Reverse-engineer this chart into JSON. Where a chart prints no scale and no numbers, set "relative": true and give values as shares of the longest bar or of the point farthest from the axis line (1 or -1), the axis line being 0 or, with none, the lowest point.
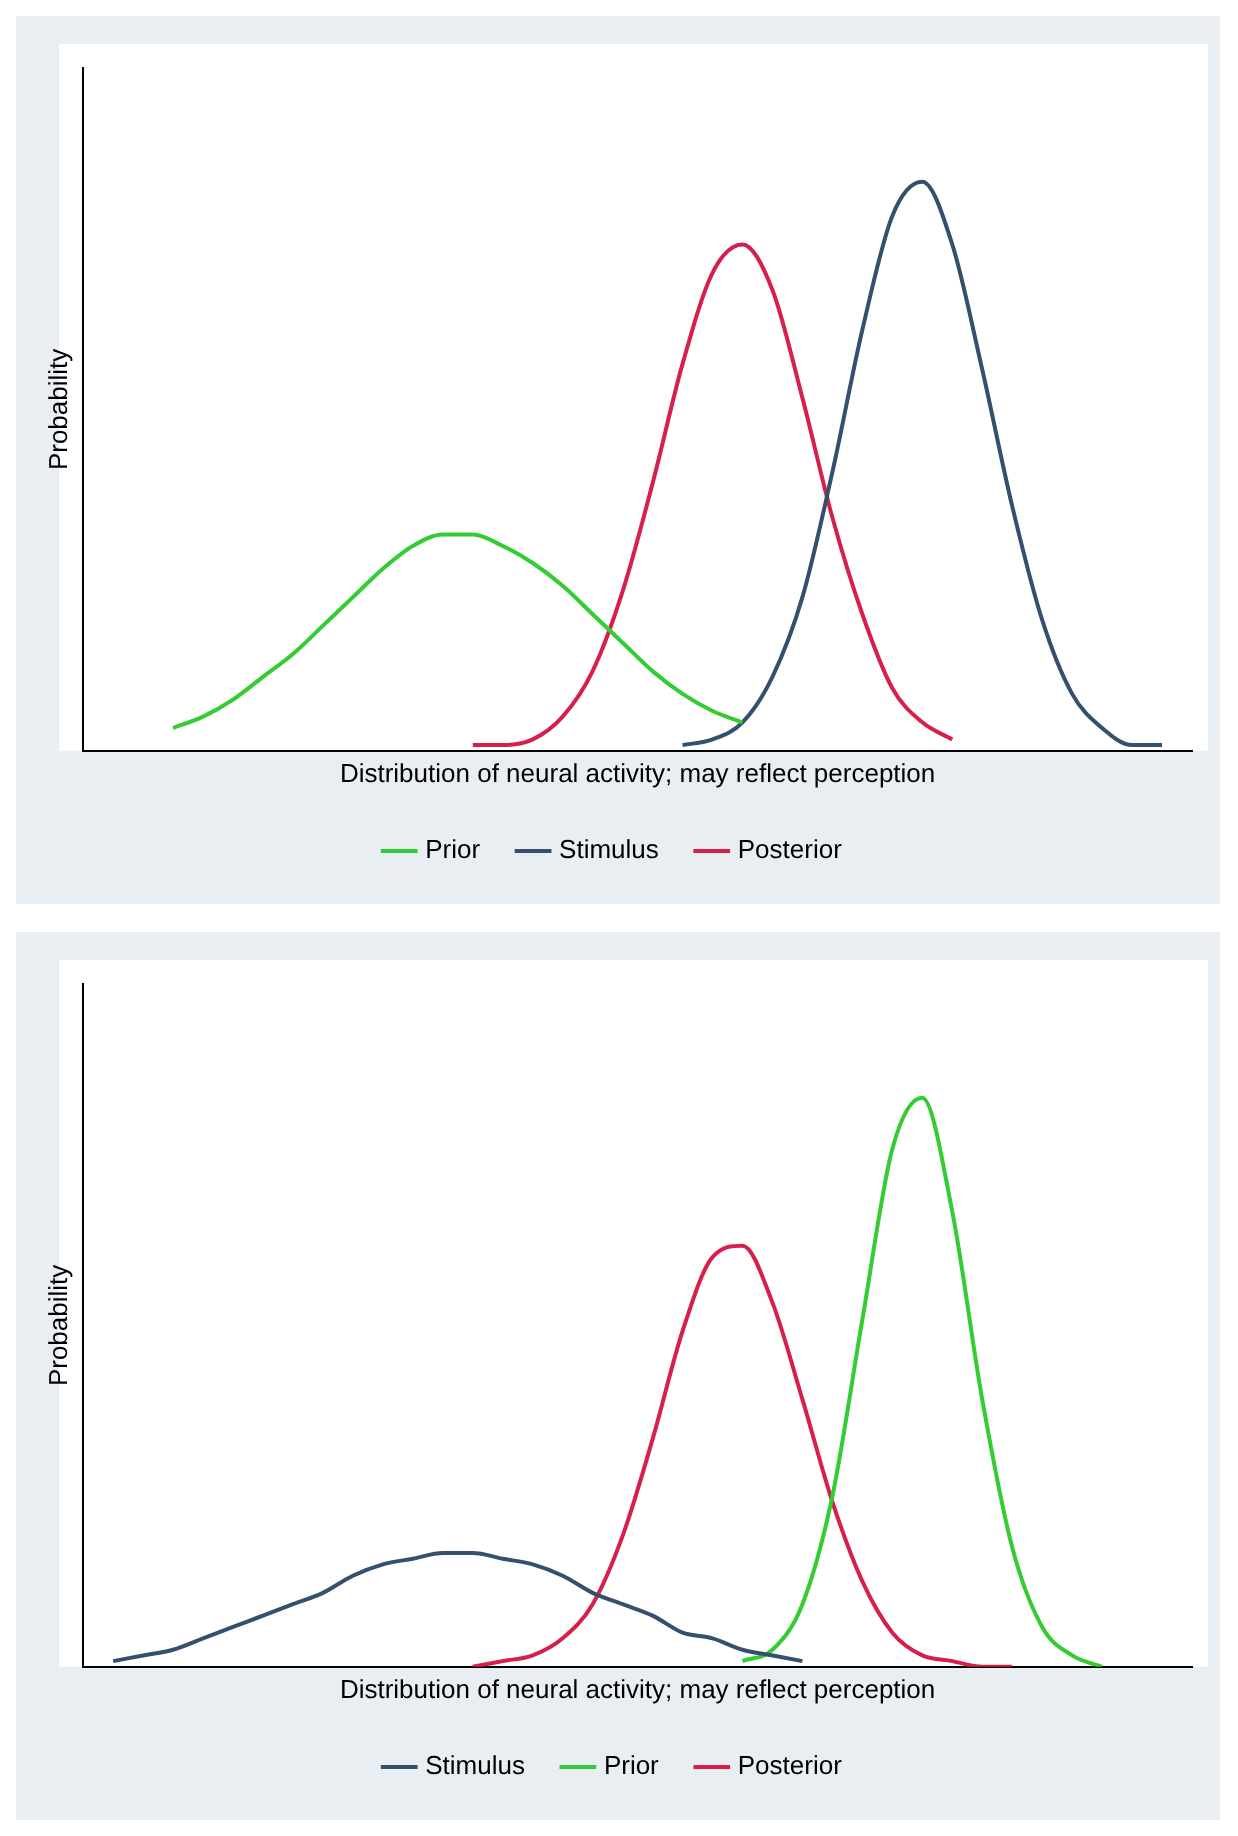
{
  "chart_data": [
    {
      "type": "line",
      "relative": true,
      "xlabel": "Distribution of neural activity; may reflect perception",
      "ylabel": "Probability",
      "categories": [
        null,
        null,
        null,
        null,
        null,
        null,
        null,
        null,
        null,
        null,
        null,
        null,
        null,
        null,
        null,
        null,
        null,
        null,
        null,
        null,
        null,
        null,
        null,
        null,
        null,
        null,
        null,
        null,
        null,
        null,
        null,
        null,
        null,
        null,
        null,
        null,
        null,
        null
      ],
      "legend": "bottom",
      "grid": false,
      "tick_labels": false,
      "marker": "none",
      "line_style": "solid",
      "series": [
        {
          "name": "Prior",
          "color": "#33cc33",
          "values": [
            null,
            null,
            null,
            0.04,
            0.06,
            0.09,
            0.13,
            0.17,
            0.22,
            0.27,
            0.32,
            0.36,
            0.38,
            0.38,
            0.36,
            0.33,
            0.29,
            0.24,
            0.19,
            0.14,
            0.1,
            0.07,
            0.05,
            null,
            null,
            null,
            null,
            null,
            null,
            null,
            null,
            null,
            null,
            null,
            null,
            null,
            null,
            null
          ]
        },
        {
          "name": "Stimulus",
          "color": "#34506e",
          "values": [
            null,
            null,
            null,
            null,
            null,
            null,
            null,
            null,
            null,
            null,
            null,
            null,
            null,
            null,
            null,
            null,
            null,
            null,
            null,
            null,
            0.01,
            0.02,
            0.05,
            0.13,
            0.27,
            0.49,
            0.74,
            0.94,
            1.0,
            0.89,
            0.67,
            0.43,
            0.23,
            0.1,
            0.04,
            0.01,
            0.01,
            null
          ]
        },
        {
          "name": "Posterior",
          "color": "#d6204b",
          "values": [
            null,
            null,
            null,
            null,
            null,
            null,
            null,
            null,
            null,
            null,
            null,
            null,
            null,
            0.01,
            0.01,
            0.02,
            0.06,
            0.14,
            0.28,
            0.47,
            0.68,
            0.84,
            0.89,
            0.81,
            0.62,
            0.41,
            0.24,
            0.11,
            0.05,
            0.02,
            null,
            null,
            null,
            null,
            null,
            null,
            null,
            null
          ]
        }
      ]
    },
    {
      "type": "line",
      "relative": true,
      "xlabel": "Distribution of neural activity; may reflect perception",
      "ylabel": "Probability",
      "categories": [
        null,
        null,
        null,
        null,
        null,
        null,
        null,
        null,
        null,
        null,
        null,
        null,
        null,
        null,
        null,
        null,
        null,
        null,
        null,
        null,
        null,
        null,
        null,
        null,
        null,
        null,
        null,
        null,
        null,
        null,
        null,
        null,
        null,
        null,
        null,
        null,
        null,
        null
      ],
      "legend": "bottom",
      "grid": false,
      "tick_labels": false,
      "marker": "none",
      "line_style": "solid",
      "series": [
        {
          "name": "Stimulus",
          "color": "#34506e",
          "values": [
            null,
            0.01,
            0.02,
            0.03,
            0.05,
            0.07,
            0.09,
            0.11,
            0.13,
            0.16,
            0.18,
            0.19,
            0.2,
            0.2,
            0.19,
            0.18,
            0.16,
            0.13,
            0.11,
            0.09,
            0.06,
            0.05,
            0.03,
            0.02,
            0.01,
            null,
            null,
            null,
            null,
            null,
            null,
            null,
            null,
            null,
            null,
            null,
            null,
            null
          ]
        },
        {
          "name": "Prior",
          "color": "#33cc33",
          "values": [
            null,
            null,
            null,
            null,
            null,
            null,
            null,
            null,
            null,
            null,
            null,
            null,
            null,
            null,
            null,
            null,
            null,
            null,
            null,
            null,
            null,
            null,
            0.01,
            0.03,
            0.11,
            0.3,
            0.61,
            0.91,
            1.0,
            0.8,
            0.47,
            0.21,
            0.07,
            0.02,
            0,
            null,
            null,
            null
          ]
        },
        {
          "name": "Posterior",
          "color": "#d6204b",
          "values": [
            null,
            null,
            null,
            null,
            null,
            null,
            null,
            null,
            null,
            null,
            null,
            null,
            null,
            0,
            0.01,
            0.02,
            0.05,
            0.11,
            0.23,
            0.4,
            0.59,
            0.72,
            0.74,
            0.64,
            0.47,
            0.29,
            0.15,
            0.06,
            0.02,
            0.01,
            0,
            0,
            null,
            null,
            null,
            null,
            null,
            null
          ]
        }
      ]
    }
  ]
}
